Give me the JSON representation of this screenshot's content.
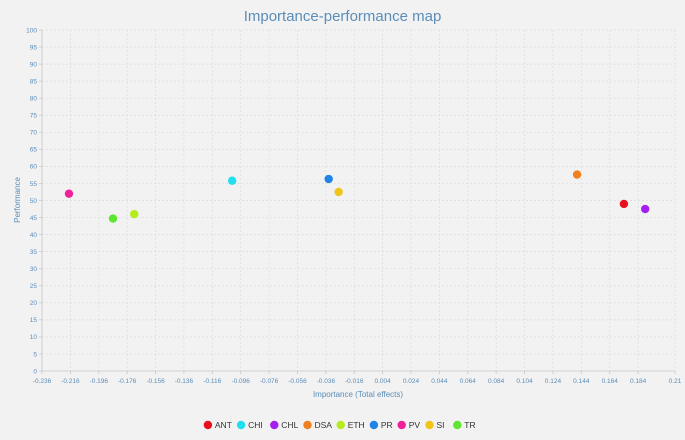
{
  "chart_data": {
    "type": "scatter",
    "title": "Importance-performance map",
    "xlabel": "Importance (Total effects)",
    "ylabel": "Performance",
    "xlim": [
      -0.236,
      0.21
    ],
    "ylim": [
      0,
      100
    ],
    "x_ticks": [
      "-0.236",
      "-0.216",
      "-0.196",
      "-0.176",
      "-0.156",
      "-0.136",
      "-0.116",
      "-0.096",
      "-0.076",
      "-0.056",
      "-0.036",
      "-0.016",
      "0.004",
      "0.024",
      "0.044",
      "0.064",
      "0.084",
      "0.104",
      "0.124",
      "0.144",
      "0.164",
      "0.184",
      "0.21"
    ],
    "y_ticks": [
      "0",
      "5",
      "10",
      "15",
      "20",
      "25",
      "30",
      "35",
      "40",
      "45",
      "50",
      "55",
      "60",
      "65",
      "70",
      "75",
      "80",
      "85",
      "90",
      "95",
      "100"
    ],
    "grid": true,
    "legend_position": "bottom",
    "series": [
      {
        "name": "ANT",
        "color": "#e8101c",
        "x": 0.174,
        "y": 49.0
      },
      {
        "name": "CHI",
        "color": "#22dff0",
        "x": -0.102,
        "y": 55.8
      },
      {
        "name": "CHL",
        "color": "#a51ff0",
        "x": 0.189,
        "y": 47.5
      },
      {
        "name": "DSA",
        "color": "#f07f1f",
        "x": 0.141,
        "y": 57.6
      },
      {
        "name": "ETH",
        "color": "#b7ec1c",
        "x": -0.171,
        "y": 46.0
      },
      {
        "name": "PR",
        "color": "#1f83e8",
        "x": -0.034,
        "y": 56.3
      },
      {
        "name": "PV",
        "color": "#f01f9a",
        "x": -0.217,
        "y": 52.0
      },
      {
        "name": "SI",
        "color": "#f0c419",
        "x": -0.027,
        "y": 52.5
      },
      {
        "name": "TR",
        "color": "#5ce62e",
        "x": -0.186,
        "y": 44.7
      }
    ]
  }
}
